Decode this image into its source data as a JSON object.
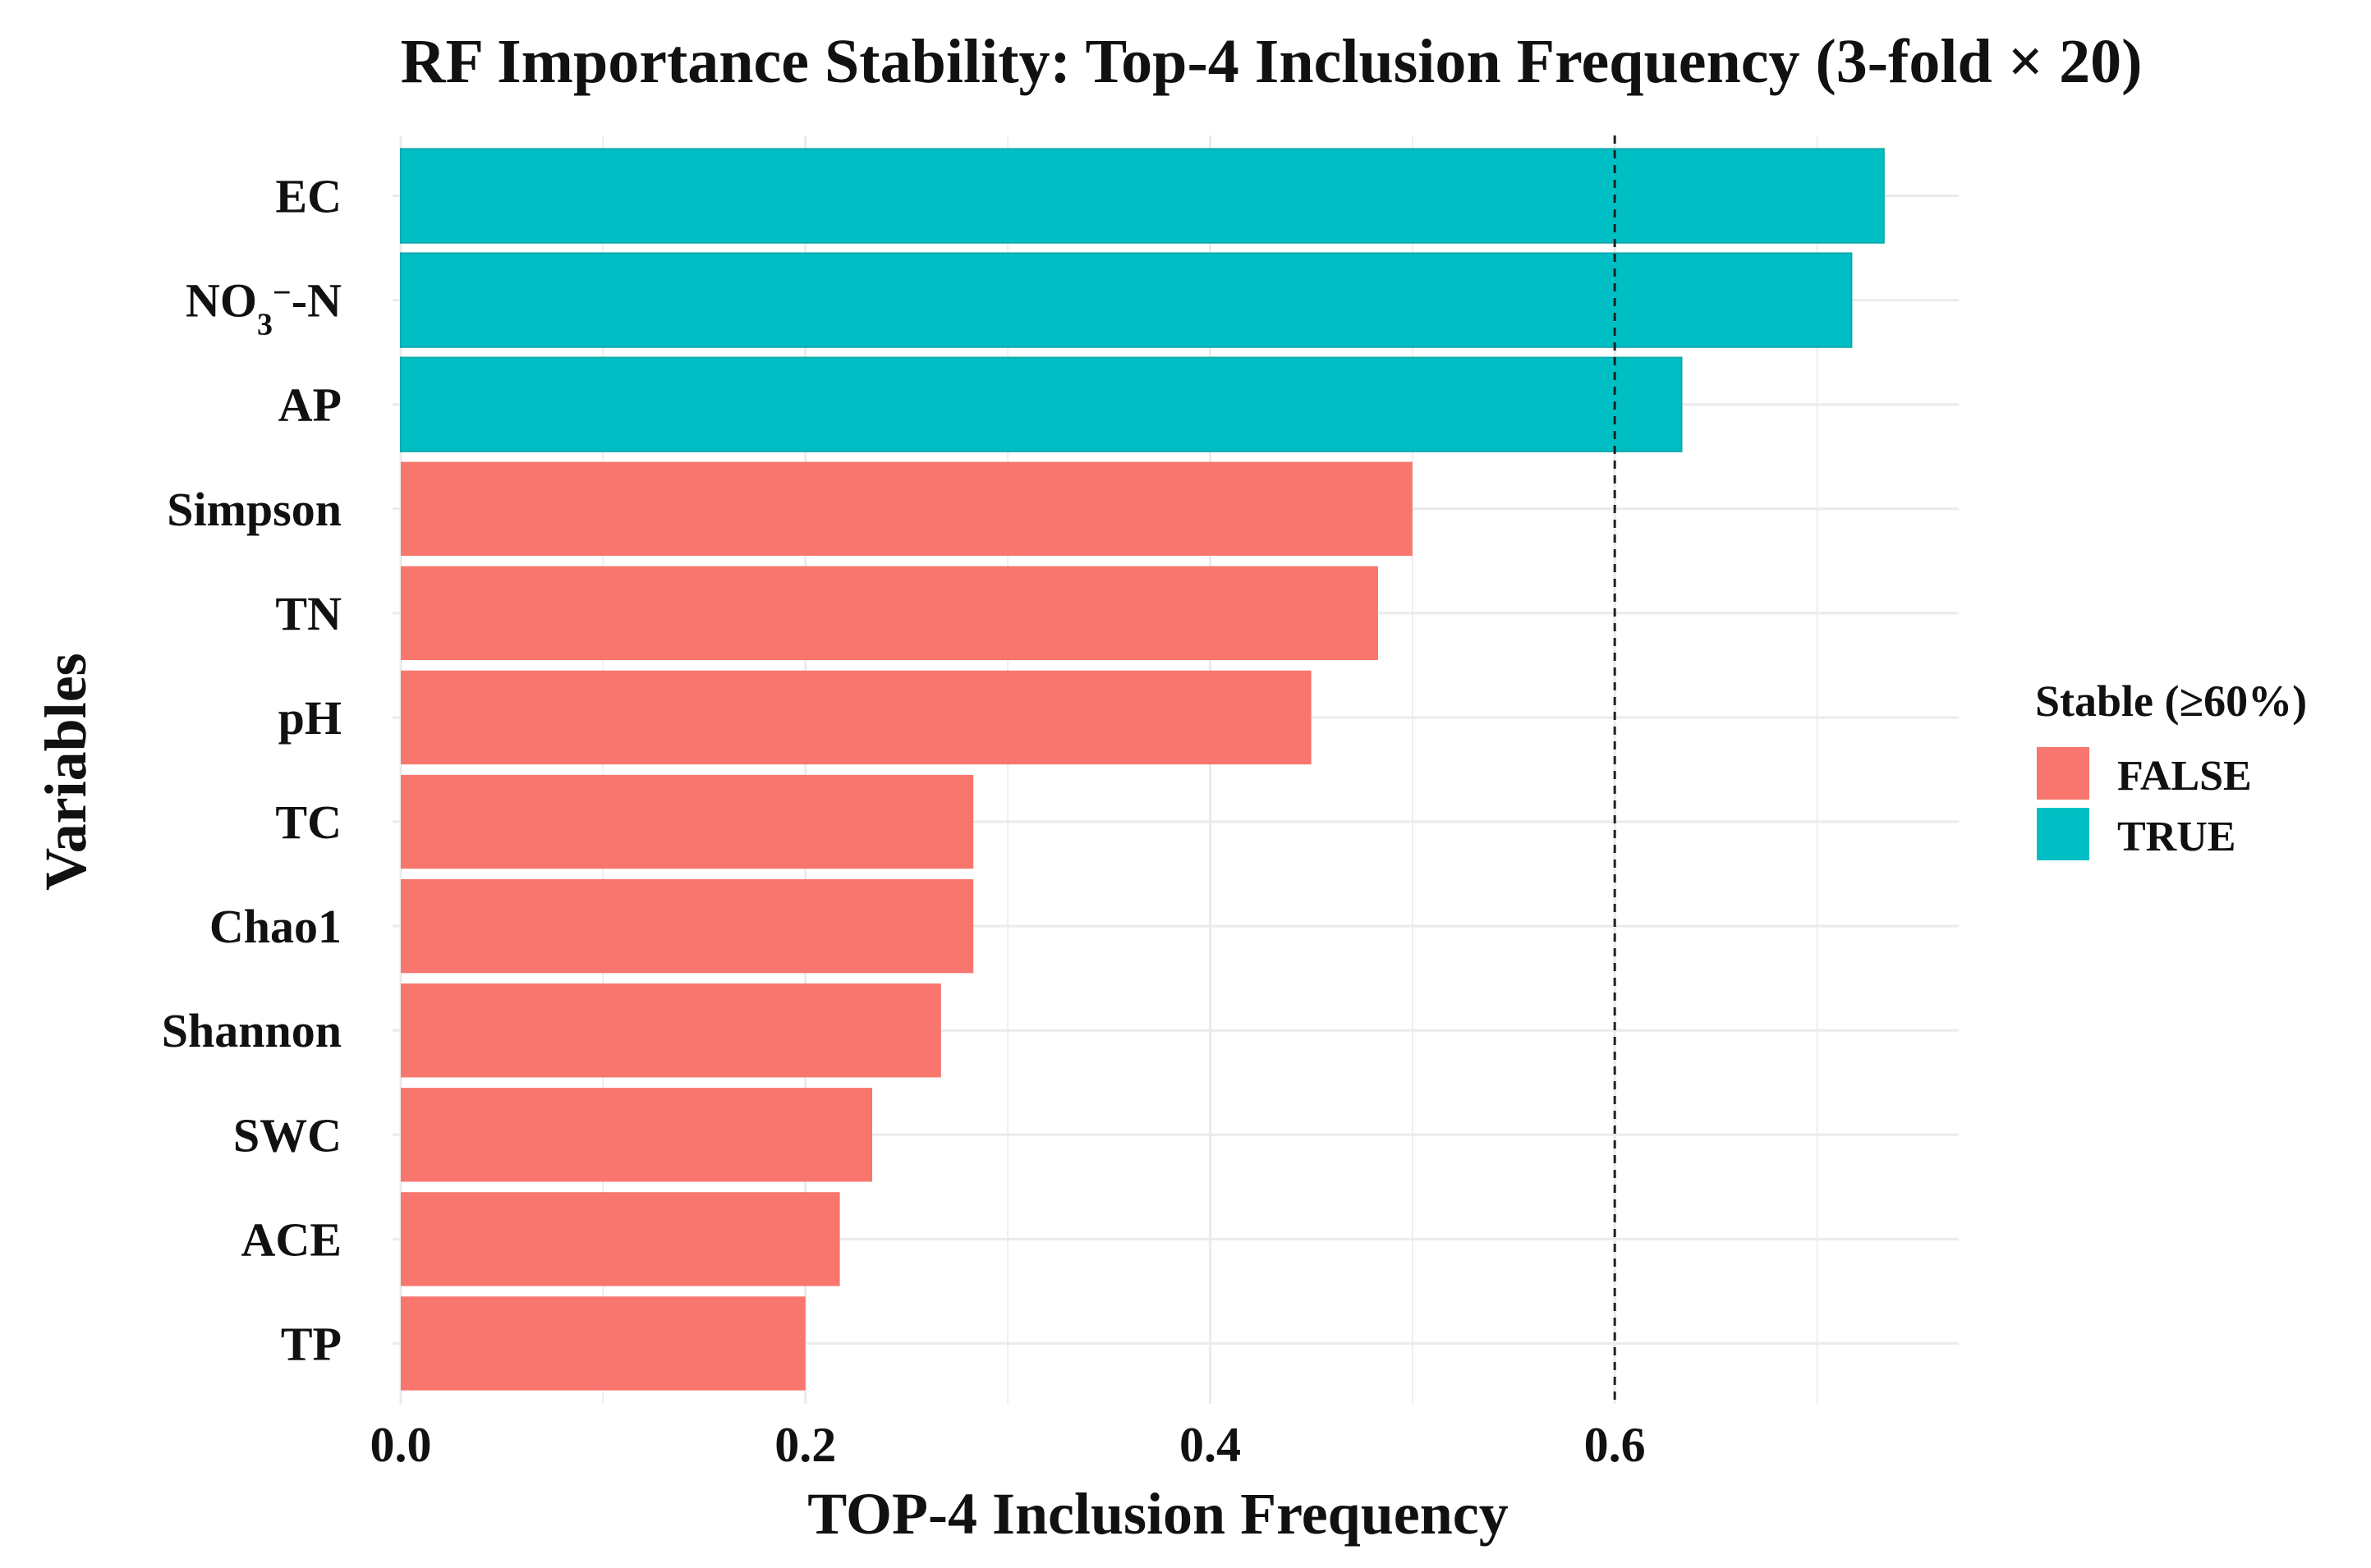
{
  "chart_data": {
    "type": "bar",
    "orientation": "horizontal",
    "title": "RF Importance Stability: Top-4 Inclusion Frequency (3-fold × 20)",
    "xlabel": "TOP-4 Inclusion Frequency",
    "ylabel": "Variables",
    "xlim": [
      0,
      0.77
    ],
    "xticks": [
      0.0,
      0.2,
      0.4,
      0.6
    ],
    "xtick_labels": [
      "0.0",
      "0.2",
      "0.4",
      "0.6"
    ],
    "threshold": 0.6,
    "categories": [
      "EC",
      "NO3−-N",
      "AP",
      "Simpson",
      "TN",
      "pH",
      "TC",
      "Chao1",
      "Shannon",
      "SWC",
      "ACE",
      "TP"
    ],
    "no3_label": {
      "base": "NO",
      "sub": "3",
      "sup": "−",
      "tail": "-N"
    },
    "values": [
      0.733,
      0.717,
      0.633,
      0.5,
      0.483,
      0.45,
      0.283,
      0.283,
      0.267,
      0.233,
      0.217,
      0.2
    ],
    "stable": [
      true,
      true,
      true,
      false,
      false,
      false,
      false,
      false,
      false,
      false,
      false,
      false
    ],
    "legend": {
      "title": "Stable (≥60%)",
      "entries": [
        {
          "label": "FALSE",
          "color": "#F8766D"
        },
        {
          "label": "TRUE",
          "color": "#00BFC4"
        }
      ]
    },
    "colors": {
      "false": "#F8766D",
      "true": "#00BFC4",
      "grid": "#ebebeb"
    }
  }
}
